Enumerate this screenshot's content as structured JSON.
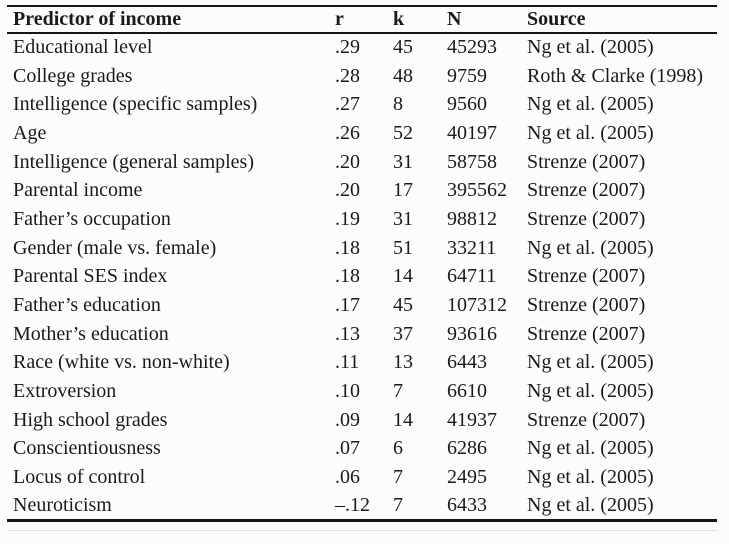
{
  "table": {
    "columns": [
      {
        "key": "predictor",
        "label": "Predictor of income"
      },
      {
        "key": "r",
        "label": "r"
      },
      {
        "key": "k",
        "label": "k"
      },
      {
        "key": "n",
        "label": "N"
      },
      {
        "key": "source",
        "label": "Source"
      }
    ],
    "rows": [
      [
        "Educational level",
        ".29",
        "45",
        "45293",
        "Ng et al. (2005)"
      ],
      [
        "College grades",
        ".28",
        "48",
        "9759",
        "Roth & Clarke (1998)"
      ],
      [
        "Intelligence (specific samples)",
        ".27",
        "8",
        "9560",
        "Ng et al. (2005)"
      ],
      [
        "Age",
        ".26",
        "52",
        "40197",
        "Ng et al. (2005)"
      ],
      [
        "Intelligence (general samples)",
        ".20",
        "31",
        "58758",
        "Strenze (2007)"
      ],
      [
        "Parental income",
        ".20",
        "17",
        "395562",
        "Strenze (2007)"
      ],
      [
        "Father’s occupation",
        ".19",
        "31",
        "98812",
        "Strenze (2007)"
      ],
      [
        "Gender (male vs. female)",
        ".18",
        "51",
        "33211",
        "Ng et al. (2005)"
      ],
      [
        "Parental SES index",
        ".18",
        "14",
        "64711",
        "Strenze (2007)"
      ],
      [
        "Father’s education",
        ".17",
        "45",
        "107312",
        "Strenze (2007)"
      ],
      [
        "Mother’s education",
        ".13",
        "37",
        "93616",
        "Strenze (2007)"
      ],
      [
        "Race (white vs. non-white)",
        ".11",
        "13",
        "6443",
        "Ng et al. (2005)"
      ],
      [
        "Extroversion",
        ".10",
        "7",
        "6610",
        "Ng et al. (2005)"
      ],
      [
        "High school grades",
        ".09",
        "14",
        "41937",
        "Strenze (2007)"
      ],
      [
        "Conscientiousness",
        ".07",
        "6",
        "6286",
        "Ng et al. (2005)"
      ],
      [
        "Locus of control",
        ".06",
        "7",
        "2495",
        "Ng et al. (2005)"
      ],
      [
        "Neuroticism",
        "–.12",
        "7",
        "6433",
        "Ng et al. (2005)"
      ]
    ]
  },
  "colors": {
    "text": "#1a1a1a",
    "rule": "#151515",
    "background": "#fcfcfc",
    "faint_rule": "#e0e0e0"
  }
}
